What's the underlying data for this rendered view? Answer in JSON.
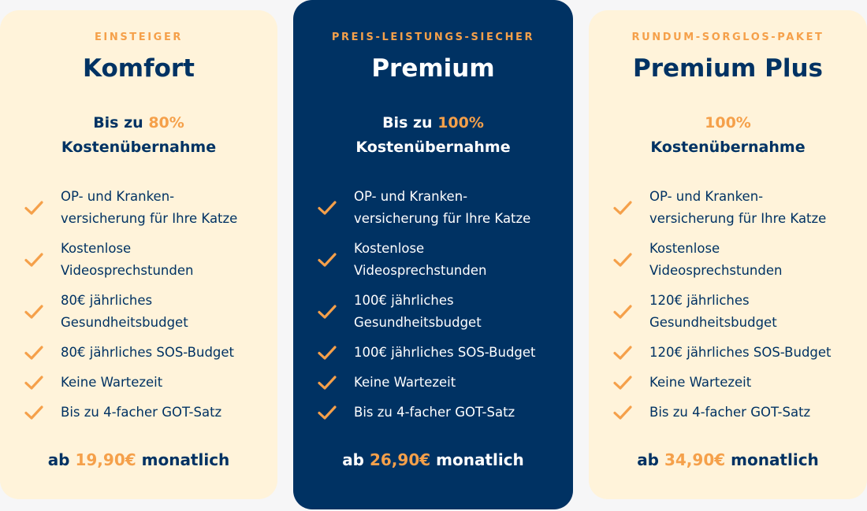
{
  "colors": {
    "background": "#f6f6f7",
    "card_light": "#fff3da",
    "card_featured": "#003263",
    "accent": "#f5a04a",
    "text_dark": "#003263"
  },
  "plans": [
    {
      "eyebrow": "EINSTEIGER",
      "name": "Komfort",
      "coverage_prefix": "Bis zu ",
      "coverage_value": "80%",
      "coverage_suffix": "Kostenübernahme",
      "features": [
        "OP- und Kranken-\nversicherung für Ihre Katze",
        "Kostenlose\nVideosprechstunden",
        "80€ jährliches\nGesundheitsbudget",
        "80€ jährliches SOS-Budget",
        "Keine Wartezeit",
        "Bis zu 4-facher GOT-Satz"
      ],
      "price_prefix": "ab ",
      "price_value": "19,90€",
      "price_suffix": " monatlich"
    },
    {
      "eyebrow": "PREIS-LEISTUNGS-SIECHER",
      "name": "Premium",
      "coverage_prefix": "Bis zu ",
      "coverage_value": "100%",
      "coverage_suffix": "Kostenübernahme",
      "features": [
        "OP- und Kranken-\nversicherung für Ihre Katze",
        "Kostenlose\nVideosprechstunden",
        "100€ jährliches\nGesundheitsbudget",
        "100€ jährliches SOS-Budget",
        "Keine Wartezeit",
        "Bis zu 4-facher GOT-Satz"
      ],
      "price_prefix": "ab ",
      "price_value": "26,90€",
      "price_suffix": " monatlich"
    },
    {
      "eyebrow": "RUNDUM-SORGLOS-PAKET",
      "name": "Premium Plus",
      "coverage_prefix": "",
      "coverage_value": "100%",
      "coverage_suffix": "Kostenübernahme",
      "features": [
        "OP- und Kranken-\nversicherung für Ihre Katze",
        "Kostenlose\nVideosprechstunden",
        "120€ jährliches\nGesundheitsbudget",
        "120€ jährliches SOS-Budget",
        "Keine Wartezeit",
        "Bis zu 4-facher GOT-Satz"
      ],
      "price_prefix": "ab ",
      "price_value": "34,90€",
      "price_suffix": " monatlich"
    }
  ],
  "icons": {
    "feature": "check-icon"
  }
}
